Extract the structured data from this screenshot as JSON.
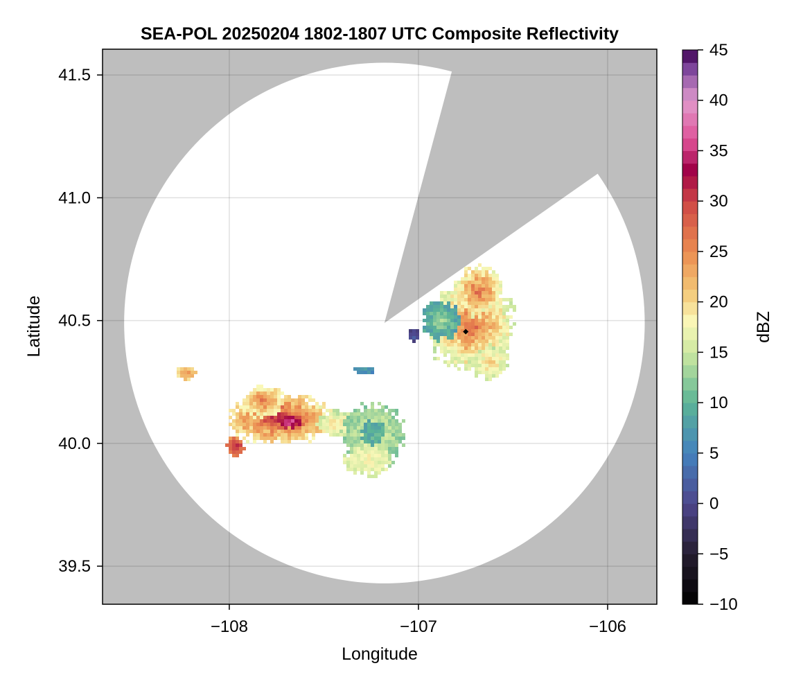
{
  "chart_data": {
    "type": "heatmap",
    "title": "SEA-POL 20250204 1802-1807 UTC Composite Reflectivity",
    "xlabel": "Longitude",
    "ylabel": "Latitude",
    "xlim": [
      -108.67,
      -105.74
    ],
    "ylim": [
      39.345,
      41.605
    ],
    "xticks": [
      -108,
      -107,
      -106
    ],
    "xtick_labels": [
      "−108",
      "−107",
      "−106"
    ],
    "yticks": [
      39.5,
      40.0,
      40.5,
      41.0,
      41.5
    ],
    "ytick_labels": [
      "39.5",
      "40.0",
      "40.5",
      "41.0",
      "41.5"
    ],
    "grid": true,
    "colorbar": {
      "label": "dBZ",
      "range": [
        -10,
        45
      ],
      "ticks": [
        -10,
        -5,
        0,
        5,
        10,
        15,
        20,
        25,
        30,
        35,
        40,
        45
      ],
      "tick_labels": [
        "−10",
        "−5",
        "0",
        "5",
        "10",
        "15",
        "20",
        "25",
        "30",
        "35",
        "40",
        "45"
      ],
      "colormap": "spectral (black→purple→blue→teal→green→yellow→orange→red→pink→purple)"
    },
    "radar": {
      "center_lon": -107.18,
      "center_lat": 40.49,
      "max_range_radius_deg_lat": 1.06,
      "blocked_sector_deg_from_north": [
        15,
        55
      ]
    },
    "marker": {
      "lon": -106.75,
      "lat": 40.455
    },
    "echo_cells": [
      {
        "lon": -106.72,
        "lat": 40.48,
        "rlon": 0.22,
        "rlat": 0.18,
        "peak_dbz": 27,
        "edge_dbz": 15
      },
      {
        "lon": -106.68,
        "lat": 40.62,
        "rlon": 0.12,
        "rlat": 0.1,
        "peak_dbz": 27,
        "edge_dbz": 17
      },
      {
        "lon": -106.88,
        "lat": 40.5,
        "rlon": 0.1,
        "rlat": 0.08,
        "peak_dbz": 13,
        "edge_dbz": 8
      },
      {
        "lon": -106.62,
        "lat": 40.33,
        "rlon": 0.09,
        "rlat": 0.07,
        "peak_dbz": 21,
        "edge_dbz": 15
      },
      {
        "lon": -107.73,
        "lat": 40.1,
        "rlon": 0.27,
        "rlat": 0.1,
        "peak_dbz": 31,
        "edge_dbz": 18
      },
      {
        "lon": -107.68,
        "lat": 40.09,
        "rlon": 0.07,
        "rlat": 0.03,
        "peak_dbz": 36,
        "edge_dbz": 30
      },
      {
        "lon": -107.82,
        "lat": 40.17,
        "rlon": 0.1,
        "rlat": 0.06,
        "peak_dbz": 27,
        "edge_dbz": 18
      },
      {
        "lon": -107.4,
        "lat": 40.08,
        "rlon": 0.14,
        "rlat": 0.05,
        "peak_dbz": 20,
        "edge_dbz": 15
      },
      {
        "lon": -107.24,
        "lat": 40.03,
        "rlon": 0.16,
        "rlat": 0.13,
        "peak_dbz": 16,
        "edge_dbz": 12
      },
      {
        "lon": -107.24,
        "lat": 40.04,
        "rlon": 0.06,
        "rlat": 0.05,
        "peak_dbz": 10,
        "edge_dbz": 9
      },
      {
        "lon": -107.27,
        "lat": 39.93,
        "rlon": 0.12,
        "rlat": 0.06,
        "peak_dbz": 18,
        "edge_dbz": 16
      },
      {
        "lon": -107.97,
        "lat": 39.99,
        "rlon": 0.05,
        "rlat": 0.04,
        "peak_dbz": 33,
        "edge_dbz": 25
      },
      {
        "lon": -108.23,
        "lat": 40.29,
        "rlon": 0.06,
        "rlat": 0.03,
        "peak_dbz": 24,
        "edge_dbz": 20
      },
      {
        "lon": -107.28,
        "lat": 40.3,
        "rlon": 0.05,
        "rlat": 0.015,
        "peak_dbz": 8,
        "edge_dbz": 6
      },
      {
        "lon": -107.02,
        "lat": 40.44,
        "rlon": 0.03,
        "rlat": 0.03,
        "peak_dbz": 2,
        "edge_dbz": 0
      }
    ]
  }
}
